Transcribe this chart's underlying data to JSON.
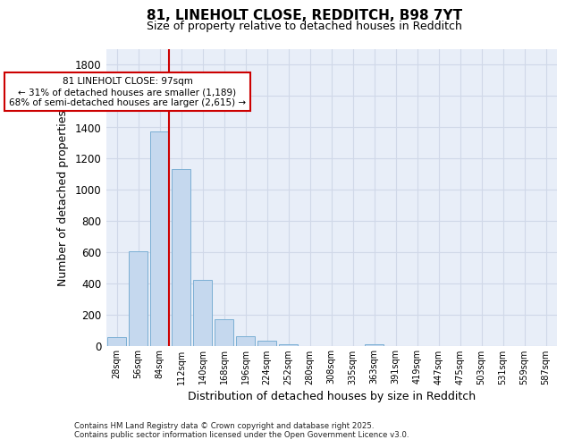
{
  "title_line1": "81, LINEHOLT CLOSE, REDDITCH, B98 7YT",
  "title_line2": "Size of property relative to detached houses in Redditch",
  "xlabel": "Distribution of detached houses by size in Redditch",
  "ylabel": "Number of detached properties",
  "bar_color": "#c5d8ee",
  "bar_edge_color": "#7bafd4",
  "background_color": "#e8eef8",
  "grid_color": "#d0d8e8",
  "annotation_box_color": "#cc0000",
  "vline_color": "#cc0000",
  "categories": [
    "28sqm",
    "56sqm",
    "84sqm",
    "112sqm",
    "140sqm",
    "168sqm",
    "196sqm",
    "224sqm",
    "252sqm",
    "280sqm",
    "308sqm",
    "335sqm",
    "363sqm",
    "391sqm",
    "419sqm",
    "447sqm",
    "475sqm",
    "503sqm",
    "531sqm",
    "559sqm",
    "587sqm"
  ],
  "values": [
    55,
    605,
    1370,
    1130,
    425,
    170,
    65,
    35,
    10,
    0,
    0,
    0,
    10,
    0,
    0,
    0,
    0,
    0,
    0,
    0,
    0
  ],
  "ylim": [
    0,
    1900
  ],
  "yticks": [
    0,
    200,
    400,
    600,
    800,
    1000,
    1200,
    1400,
    1600,
    1800
  ],
  "vline_x_idx": 2,
  "annotation_text": "81 LINEHOLT CLOSE: 97sqm\n← 31% of detached houses are smaller (1,189)\n68% of semi-detached houses are larger (2,615) →",
  "footnote1": "Contains HM Land Registry data © Crown copyright and database right 2025.",
  "footnote2": "Contains public sector information licensed under the Open Government Licence v3.0."
}
